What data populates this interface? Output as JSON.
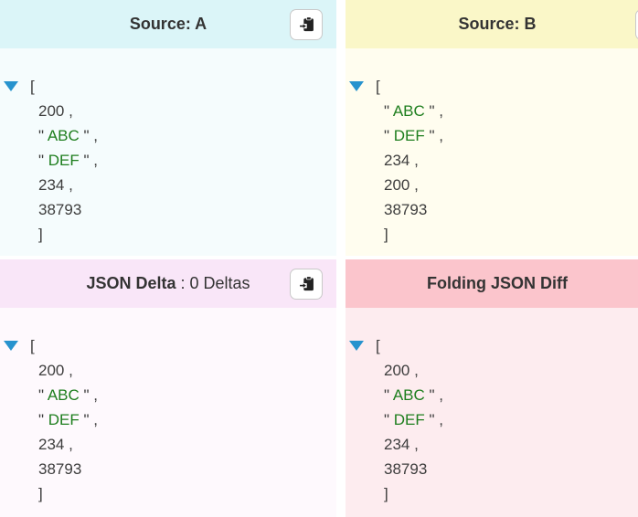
{
  "colors": {
    "source_a_header_bg": "#dbf5f8",
    "source_a_content_bg": "#f5fcfd",
    "source_b_header_bg": "#faf7c8",
    "source_b_content_bg": "#fffdef",
    "delta_header_bg": "#f9e6f8",
    "delta_content_bg": "#fef9fd",
    "diff_header_bg": "#fbc5cc",
    "diff_content_bg": "#fdecef",
    "string_token": "#1e7e1e",
    "plain_token": "#3d3d3d",
    "fold_arrow": "#2793ce",
    "header_text": "#333333"
  },
  "panels": {
    "source_a": {
      "title": "Source: A",
      "clipboard_button": true,
      "json_lines": [
        {
          "arrow": true,
          "tokens": [
            {
              "type": "plain",
              "text": "["
            }
          ]
        },
        {
          "tokens": [
            {
              "type": "plain",
              "text": "200 ,"
            }
          ]
        },
        {
          "tokens": [
            {
              "type": "plain",
              "text": "\" "
            },
            {
              "type": "string",
              "text": "ABC"
            },
            {
              "type": "plain",
              "text": " \" ,"
            }
          ]
        },
        {
          "tokens": [
            {
              "type": "plain",
              "text": "\" "
            },
            {
              "type": "string",
              "text": "DEF"
            },
            {
              "type": "plain",
              "text": " \" ,"
            }
          ]
        },
        {
          "tokens": [
            {
              "type": "plain",
              "text": "234 ,"
            }
          ]
        },
        {
          "tokens": [
            {
              "type": "plain",
              "text": "38793"
            }
          ]
        },
        {
          "tokens": [
            {
              "type": "plain",
              "text": "]"
            }
          ]
        }
      ]
    },
    "source_b": {
      "title": "Source: B",
      "clipboard_button": true,
      "json_lines": [
        {
          "arrow": true,
          "tokens": [
            {
              "type": "plain",
              "text": "["
            }
          ]
        },
        {
          "tokens": [
            {
              "type": "plain",
              "text": "\" "
            },
            {
              "type": "string",
              "text": "ABC"
            },
            {
              "type": "plain",
              "text": " \" ,"
            }
          ]
        },
        {
          "tokens": [
            {
              "type": "plain",
              "text": "\" "
            },
            {
              "type": "string",
              "text": "DEF"
            },
            {
              "type": "plain",
              "text": " \" ,"
            }
          ]
        },
        {
          "tokens": [
            {
              "type": "plain",
              "text": "234 ,"
            }
          ]
        },
        {
          "tokens": [
            {
              "type": "plain",
              "text": "200 ,"
            }
          ]
        },
        {
          "tokens": [
            {
              "type": "plain",
              "text": "38793"
            }
          ]
        },
        {
          "tokens": [
            {
              "type": "plain",
              "text": "]"
            }
          ]
        }
      ]
    },
    "json_delta": {
      "title": "JSON Delta",
      "title_suffix": " : 0 Deltas",
      "clipboard_button": true,
      "json_lines": [
        {
          "arrow": true,
          "tokens": [
            {
              "type": "plain",
              "text": "["
            }
          ]
        },
        {
          "tokens": [
            {
              "type": "plain",
              "text": "200 ,"
            }
          ]
        },
        {
          "tokens": [
            {
              "type": "plain",
              "text": "\" "
            },
            {
              "type": "string",
              "text": "ABC"
            },
            {
              "type": "plain",
              "text": " \" ,"
            }
          ]
        },
        {
          "tokens": [
            {
              "type": "plain",
              "text": "\" "
            },
            {
              "type": "string",
              "text": "DEF"
            },
            {
              "type": "plain",
              "text": " \" ,"
            }
          ]
        },
        {
          "tokens": [
            {
              "type": "plain",
              "text": "234 ,"
            }
          ]
        },
        {
          "tokens": [
            {
              "type": "plain",
              "text": "38793"
            }
          ]
        },
        {
          "tokens": [
            {
              "type": "plain",
              "text": "]"
            }
          ]
        }
      ]
    },
    "folding_diff": {
      "title": "Folding JSON Diff",
      "clipboard_button": false,
      "json_lines": [
        {
          "arrow": true,
          "tokens": [
            {
              "type": "plain",
              "text": "["
            }
          ]
        },
        {
          "tokens": [
            {
              "type": "plain",
              "text": "200 ,"
            }
          ]
        },
        {
          "tokens": [
            {
              "type": "plain",
              "text": "\" "
            },
            {
              "type": "string",
              "text": "ABC"
            },
            {
              "type": "plain",
              "text": " \" ,"
            }
          ]
        },
        {
          "tokens": [
            {
              "type": "plain",
              "text": "\" "
            },
            {
              "type": "string",
              "text": "DEF"
            },
            {
              "type": "plain",
              "text": " \" ,"
            }
          ]
        },
        {
          "tokens": [
            {
              "type": "plain",
              "text": "234 ,"
            }
          ]
        },
        {
          "tokens": [
            {
              "type": "plain",
              "text": "38793"
            }
          ]
        },
        {
          "tokens": [
            {
              "type": "plain",
              "text": "]"
            }
          ]
        }
      ]
    }
  }
}
